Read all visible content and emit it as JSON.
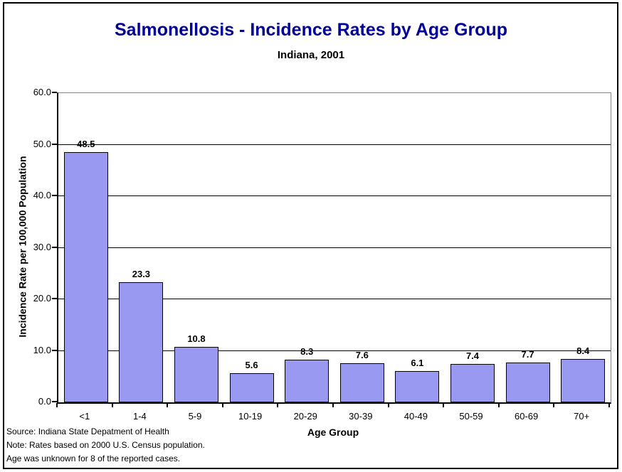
{
  "page": {
    "background": "#ffffff",
    "border_color": "#000000",
    "title_color": "#000099"
  },
  "header": {
    "title": "Salmonellosis - Incidence Rates by Age Group",
    "subtitle": "Indiana, 2001"
  },
  "chart_data": {
    "type": "bar",
    "title": "Salmonellosis - Incidence Rates by Age Group",
    "subtitle": "Indiana, 2001",
    "categories": [
      "<1",
      "1-4",
      "5-9",
      "10-19",
      "20-29",
      "30-39",
      "40-49",
      "50-59",
      "60-69",
      "70+"
    ],
    "values": [
      48.5,
      23.3,
      10.8,
      5.6,
      8.3,
      7.6,
      6.1,
      7.4,
      7.7,
      8.4
    ],
    "data_labels": [
      "48.5",
      "23.3",
      "10.8",
      "5.6",
      "8.3",
      "7.6",
      "6.1",
      "7.4",
      "7.7",
      "8.4"
    ],
    "xlabel": "Age Group",
    "ylabel": "Incidence Rate per 100,000 Population",
    "ylim": [
      0,
      60
    ],
    "ytick_step": 10,
    "ytick_labels": [
      "0.0",
      "10.0",
      "20.0",
      "30.0",
      "40.0",
      "50.0",
      "60.0"
    ],
    "grid": true,
    "legend": "none",
    "bar_color": "#9999F2",
    "bar_border_color": "#000000",
    "gridline_color": "#000000",
    "plot_border_color": "#848484"
  },
  "footer": {
    "lines": [
      "Source: Indiana State Depatment of Health",
      "Note: Rates based on 2000 U.S. Census population.",
      "Age was unknown for 8 of the reported cases."
    ]
  }
}
